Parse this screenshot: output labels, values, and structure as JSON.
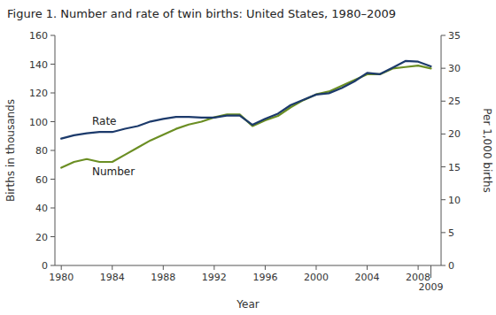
{
  "chart_data": {
    "type": "line",
    "title": "Figure 1. Number and rate of twin births: United States, 1980–2009",
    "x": [
      1980,
      1981,
      1982,
      1983,
      1984,
      1985,
      1986,
      1987,
      1988,
      1989,
      1990,
      1991,
      1992,
      1993,
      1994,
      1995,
      1996,
      1997,
      1998,
      1999,
      2000,
      2001,
      2002,
      2003,
      2004,
      2005,
      2006,
      2007,
      2008,
      2009
    ],
    "xlabel": "Year",
    "ylabel": "Births in thousands",
    "y2label": "Per 1,000 births",
    "xlim": [
      1979.5,
      2009.8
    ],
    "xticks": [
      1980,
      1984,
      1988,
      1992,
      1996,
      2000,
      2004,
      2008,
      2009
    ],
    "ylim": [
      0,
      160
    ],
    "yticks": [
      0,
      20,
      40,
      60,
      80,
      100,
      120,
      140,
      160
    ],
    "y2lim": [
      0,
      35
    ],
    "y2ticks": [
      0,
      5,
      10,
      15,
      20,
      25,
      30,
      35
    ],
    "grid": false,
    "series": [
      {
        "name": "Number",
        "color": "#6b8e23",
        "values": [
          68,
          72,
          74,
          72,
          72,
          77,
          82,
          87,
          91,
          95,
          98,
          100,
          103,
          105,
          105,
          97,
          101,
          104,
          110,
          115,
          119,
          121,
          125,
          129,
          133,
          133,
          137,
          138,
          139,
          137
        ]
      },
      {
        "name": "Rate",
        "color": "#1c3a6b",
        "axis": "y2",
        "values": [
          19.3,
          19.8,
          20.1,
          20.3,
          20.3,
          20.8,
          21.2,
          21.9,
          22.3,
          22.6,
          22.6,
          22.5,
          22.5,
          22.8,
          22.8,
          21.4,
          22.3,
          23.1,
          24.4,
          25.2,
          26.0,
          26.2,
          27.0,
          28.0,
          29.3,
          29.1,
          30.1,
          31.1,
          31.0,
          30.3
        ]
      }
    ]
  }
}
